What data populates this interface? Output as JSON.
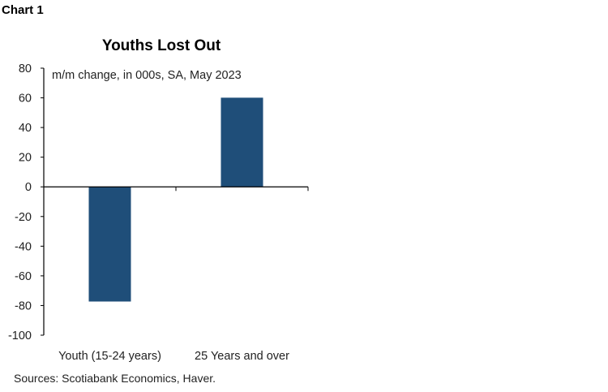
{
  "header": {
    "label": "Chart 1"
  },
  "chart_data": {
    "type": "bar",
    "title": "Youths Lost Out",
    "subtitle": "m/m change, in 000s, SA, May 2023",
    "categories": [
      "Youth (15-24 years)",
      "25 Years and over"
    ],
    "values": [
      -77.3,
      60.1
    ],
    "ylim": [
      -100,
      80
    ],
    "yticks": [
      80,
      60,
      40,
      20,
      0,
      -20,
      -40,
      -60,
      -80,
      -100
    ],
    "bar_color": "#1f4e79",
    "grid": false,
    "source": "Sources: Scotiabank Economics, Haver."
  }
}
